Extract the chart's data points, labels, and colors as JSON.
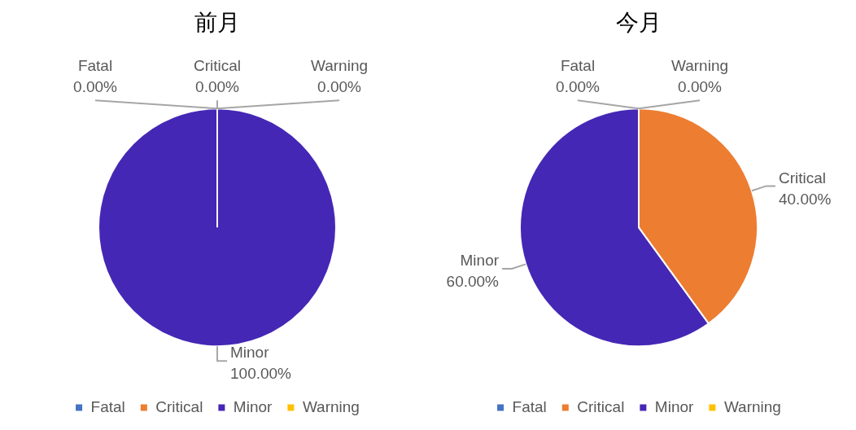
{
  "chart_data": [
    {
      "type": "pie",
      "title": "前月",
      "categories": [
        "Fatal",
        "Critical",
        "Minor",
        "Warning"
      ],
      "values": [
        0,
        0,
        100,
        0
      ],
      "value_labels": [
        "0.00%",
        "0.00%",
        "100.00%",
        "0.00%"
      ],
      "colors": [
        "#4472c4",
        "#ed7d31",
        "#4527b5",
        "#ffc000"
      ],
      "legend": "bottom"
    },
    {
      "type": "pie",
      "title": "今月",
      "categories": [
        "Fatal",
        "Critical",
        "Minor",
        "Warning"
      ],
      "values": [
        0,
        40,
        60,
        0
      ],
      "value_labels": [
        "0.00%",
        "40.00%",
        "60.00%",
        "0.00%"
      ],
      "colors": [
        "#4472c4",
        "#ed7d31",
        "#4527b5",
        "#ffc000"
      ],
      "legend": "bottom"
    }
  ]
}
